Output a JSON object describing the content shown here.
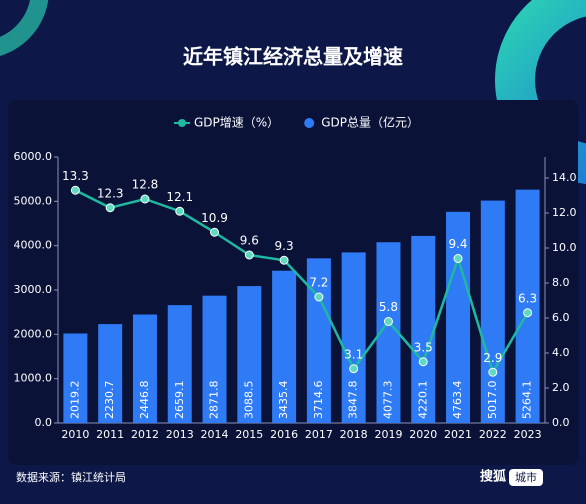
{
  "chart_data": {
    "type": "bar",
    "title": "近年镇江经济总量及增速",
    "source": "数据来源：镇江统计局",
    "brand": {
      "name": "搜狐",
      "section": "城市"
    },
    "categories": [
      "2010",
      "2011",
      "2012",
      "2013",
      "2014",
      "2015",
      "2016",
      "2017",
      "2018",
      "2019",
      "2020",
      "2021",
      "2022",
      "2023"
    ],
    "series": [
      {
        "name": "GDP总量（亿元）",
        "type": "bar",
        "color": "#2f7bf5",
        "values": [
          2019.2,
          2230.7,
          2446.8,
          2659.1,
          2871.8,
          3088.5,
          3435.4,
          3714.6,
          3847.8,
          4077.3,
          4220.1,
          4763.4,
          5017.0,
          5264.1
        ],
        "value_labels": [
          "2019.2",
          "2230.7",
          "2446.8",
          "2659.1",
          "2871.8",
          "3088.5",
          "3435.4",
          "3714.6",
          "3847.8",
          "4077.3",
          "4220.1",
          "4763.4",
          "5017.0",
          "5264.1"
        ]
      },
      {
        "name": "GDP增速（%）",
        "type": "line",
        "axis": "y2",
        "color": "#1fb8a0",
        "values": [
          13.3,
          12.3,
          12.8,
          12.1,
          10.9,
          9.6,
          9.3,
          7.2,
          3.1,
          5.8,
          3.5,
          9.4,
          2.9,
          6.3
        ]
      }
    ],
    "ylim": [
      0,
      6000
    ],
    "yticks": [
      {
        "value": 0,
        "label": "0.0"
      },
      {
        "value": 1000,
        "label": "1000.0"
      },
      {
        "value": 2000,
        "label": "2000.0"
      },
      {
        "value": 3000,
        "label": "3000.0"
      },
      {
        "value": 4000,
        "label": "4000.0"
      },
      {
        "value": 5000,
        "label": "5000.0"
      },
      {
        "value": 6000,
        "label": "6000.0"
      }
    ],
    "y2lim": [
      0,
      15.2
    ],
    "y2ticks": [
      {
        "value": 0,
        "label": "0.0"
      },
      {
        "value": 2,
        "label": "2.0"
      },
      {
        "value": 4,
        "label": "4.0"
      },
      {
        "value": 6,
        "label": "6.0"
      },
      {
        "value": 8,
        "label": "8.0"
      },
      {
        "value": 10,
        "label": "10.0"
      },
      {
        "value": 12,
        "label": "12.0"
      },
      {
        "value": 14,
        "label": "14.0"
      }
    ],
    "legend": "top"
  }
}
